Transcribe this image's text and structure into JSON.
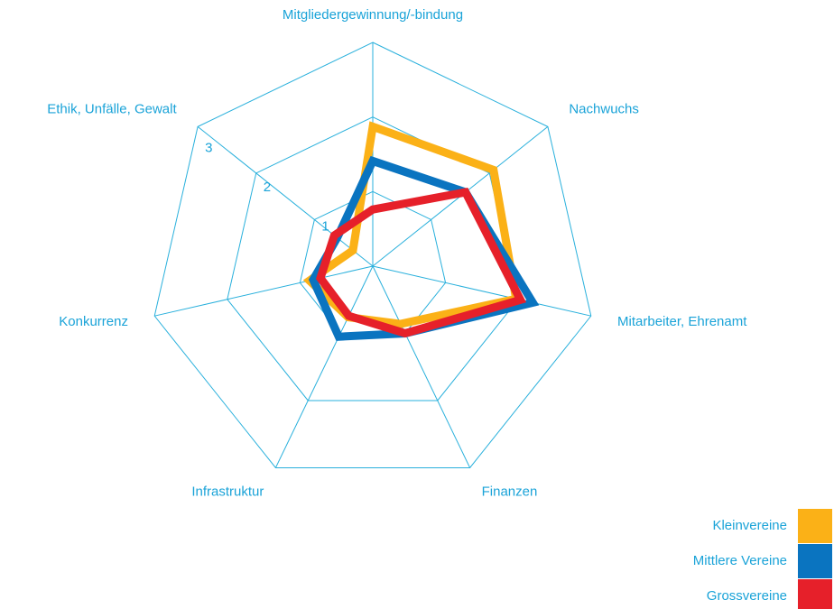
{
  "chart_data": {
    "type": "radar",
    "categories": [
      "Mitgliedergewinnung/-bindung",
      "Nachwuchs",
      "Mitarbeiter, Ehrenamt",
      "Finanzen",
      "Infrastruktur",
      "Konkurrenz",
      "Ethik, Unfälle, Gewalt"
    ],
    "series": [
      {
        "name": "Kleinvereine",
        "color": "#fbb117",
        "values": [
          1.87,
          2.07,
          1.97,
          0.86,
          0.76,
          0.87,
          0.34
        ]
      },
      {
        "name": "Mittlere Vereine",
        "color": "#0a74c0",
        "values": [
          1.41,
          1.59,
          2.2,
          1.0,
          1.05,
          0.82,
          0.61
        ]
      },
      {
        "name": "Grossvereine",
        "color": "#e6202a",
        "values": [
          0.76,
          1.59,
          2.03,
          1.0,
          0.74,
          0.72,
          0.66
        ]
      }
    ],
    "ylim": [
      0,
      3
    ],
    "yticks": [
      1,
      2,
      3
    ],
    "grid": true
  }
}
